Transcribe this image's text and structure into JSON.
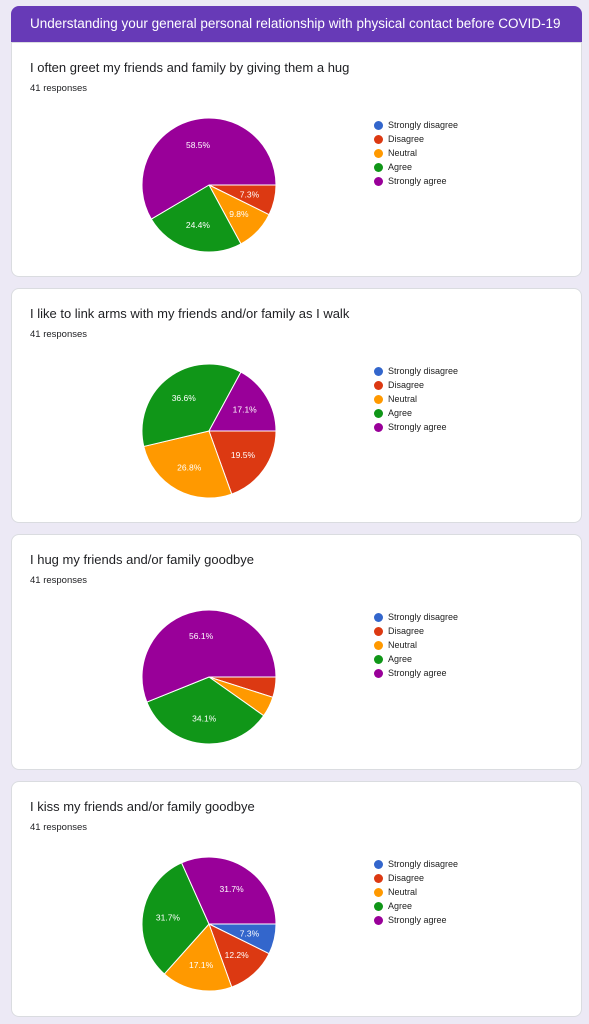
{
  "header": {
    "title": "Understanding your general personal relationship with physical contact before COVID-19"
  },
  "legend": {
    "labels": [
      "Strongly disagree",
      "Disagree",
      "Neutral",
      "Agree",
      "Strongly agree"
    ],
    "colors": [
      "#3366cc",
      "#dc3912",
      "#ff9900",
      "#109618",
      "#990099"
    ]
  },
  "questions": [
    {
      "title": "I often greet my friends and family by giving them a hug",
      "responses": "41 responses"
    },
    {
      "title": "I like to link arms with my friends and/or family as I walk",
      "responses": "41 responses"
    },
    {
      "title": "I hug my friends and/or family goodbye",
      "responses": "41 responses"
    },
    {
      "title": "I kiss my friends and/or family goodbye",
      "responses": "41 responses"
    }
  ],
  "chart_data": [
    {
      "type": "pie",
      "title": "I often greet my friends and family by giving them a hug",
      "categories": [
        "Strongly disagree",
        "Disagree",
        "Neutral",
        "Agree",
        "Strongly agree"
      ],
      "values": [
        0,
        7.3,
        9.8,
        24.4,
        58.5
      ],
      "labels": [
        "",
        "7.3%",
        "9.8%",
        "24.4%",
        "58.5%"
      ]
    },
    {
      "type": "pie",
      "title": "I like to link arms with my friends and/or family as I walk",
      "categories": [
        "Strongly disagree",
        "Disagree",
        "Neutral",
        "Agree",
        "Strongly agree"
      ],
      "values": [
        0,
        19.5,
        26.8,
        36.6,
        17.1
      ],
      "labels": [
        "",
        "19.5%",
        "26.8%",
        "36.6%",
        "17.1%"
      ]
    },
    {
      "type": "pie",
      "title": "I hug my friends and/or family goodbye",
      "categories": [
        "Strongly disagree",
        "Disagree",
        "Neutral",
        "Agree",
        "Strongly agree"
      ],
      "values": [
        0,
        4.9,
        4.9,
        34.1,
        56.1
      ],
      "labels": [
        "",
        "",
        "",
        "34.1%",
        "56.1%"
      ]
    },
    {
      "type": "pie",
      "title": "I kiss my friends and/or family goodbye",
      "categories": [
        "Strongly disagree",
        "Disagree",
        "Neutral",
        "Agree",
        "Strongly agree"
      ],
      "values": [
        7.3,
        12.2,
        17.1,
        31.7,
        31.7
      ],
      "labels": [
        "7.3%",
        "12.2%",
        "17.1%",
        "31.7%",
        "31.7%"
      ]
    }
  ]
}
